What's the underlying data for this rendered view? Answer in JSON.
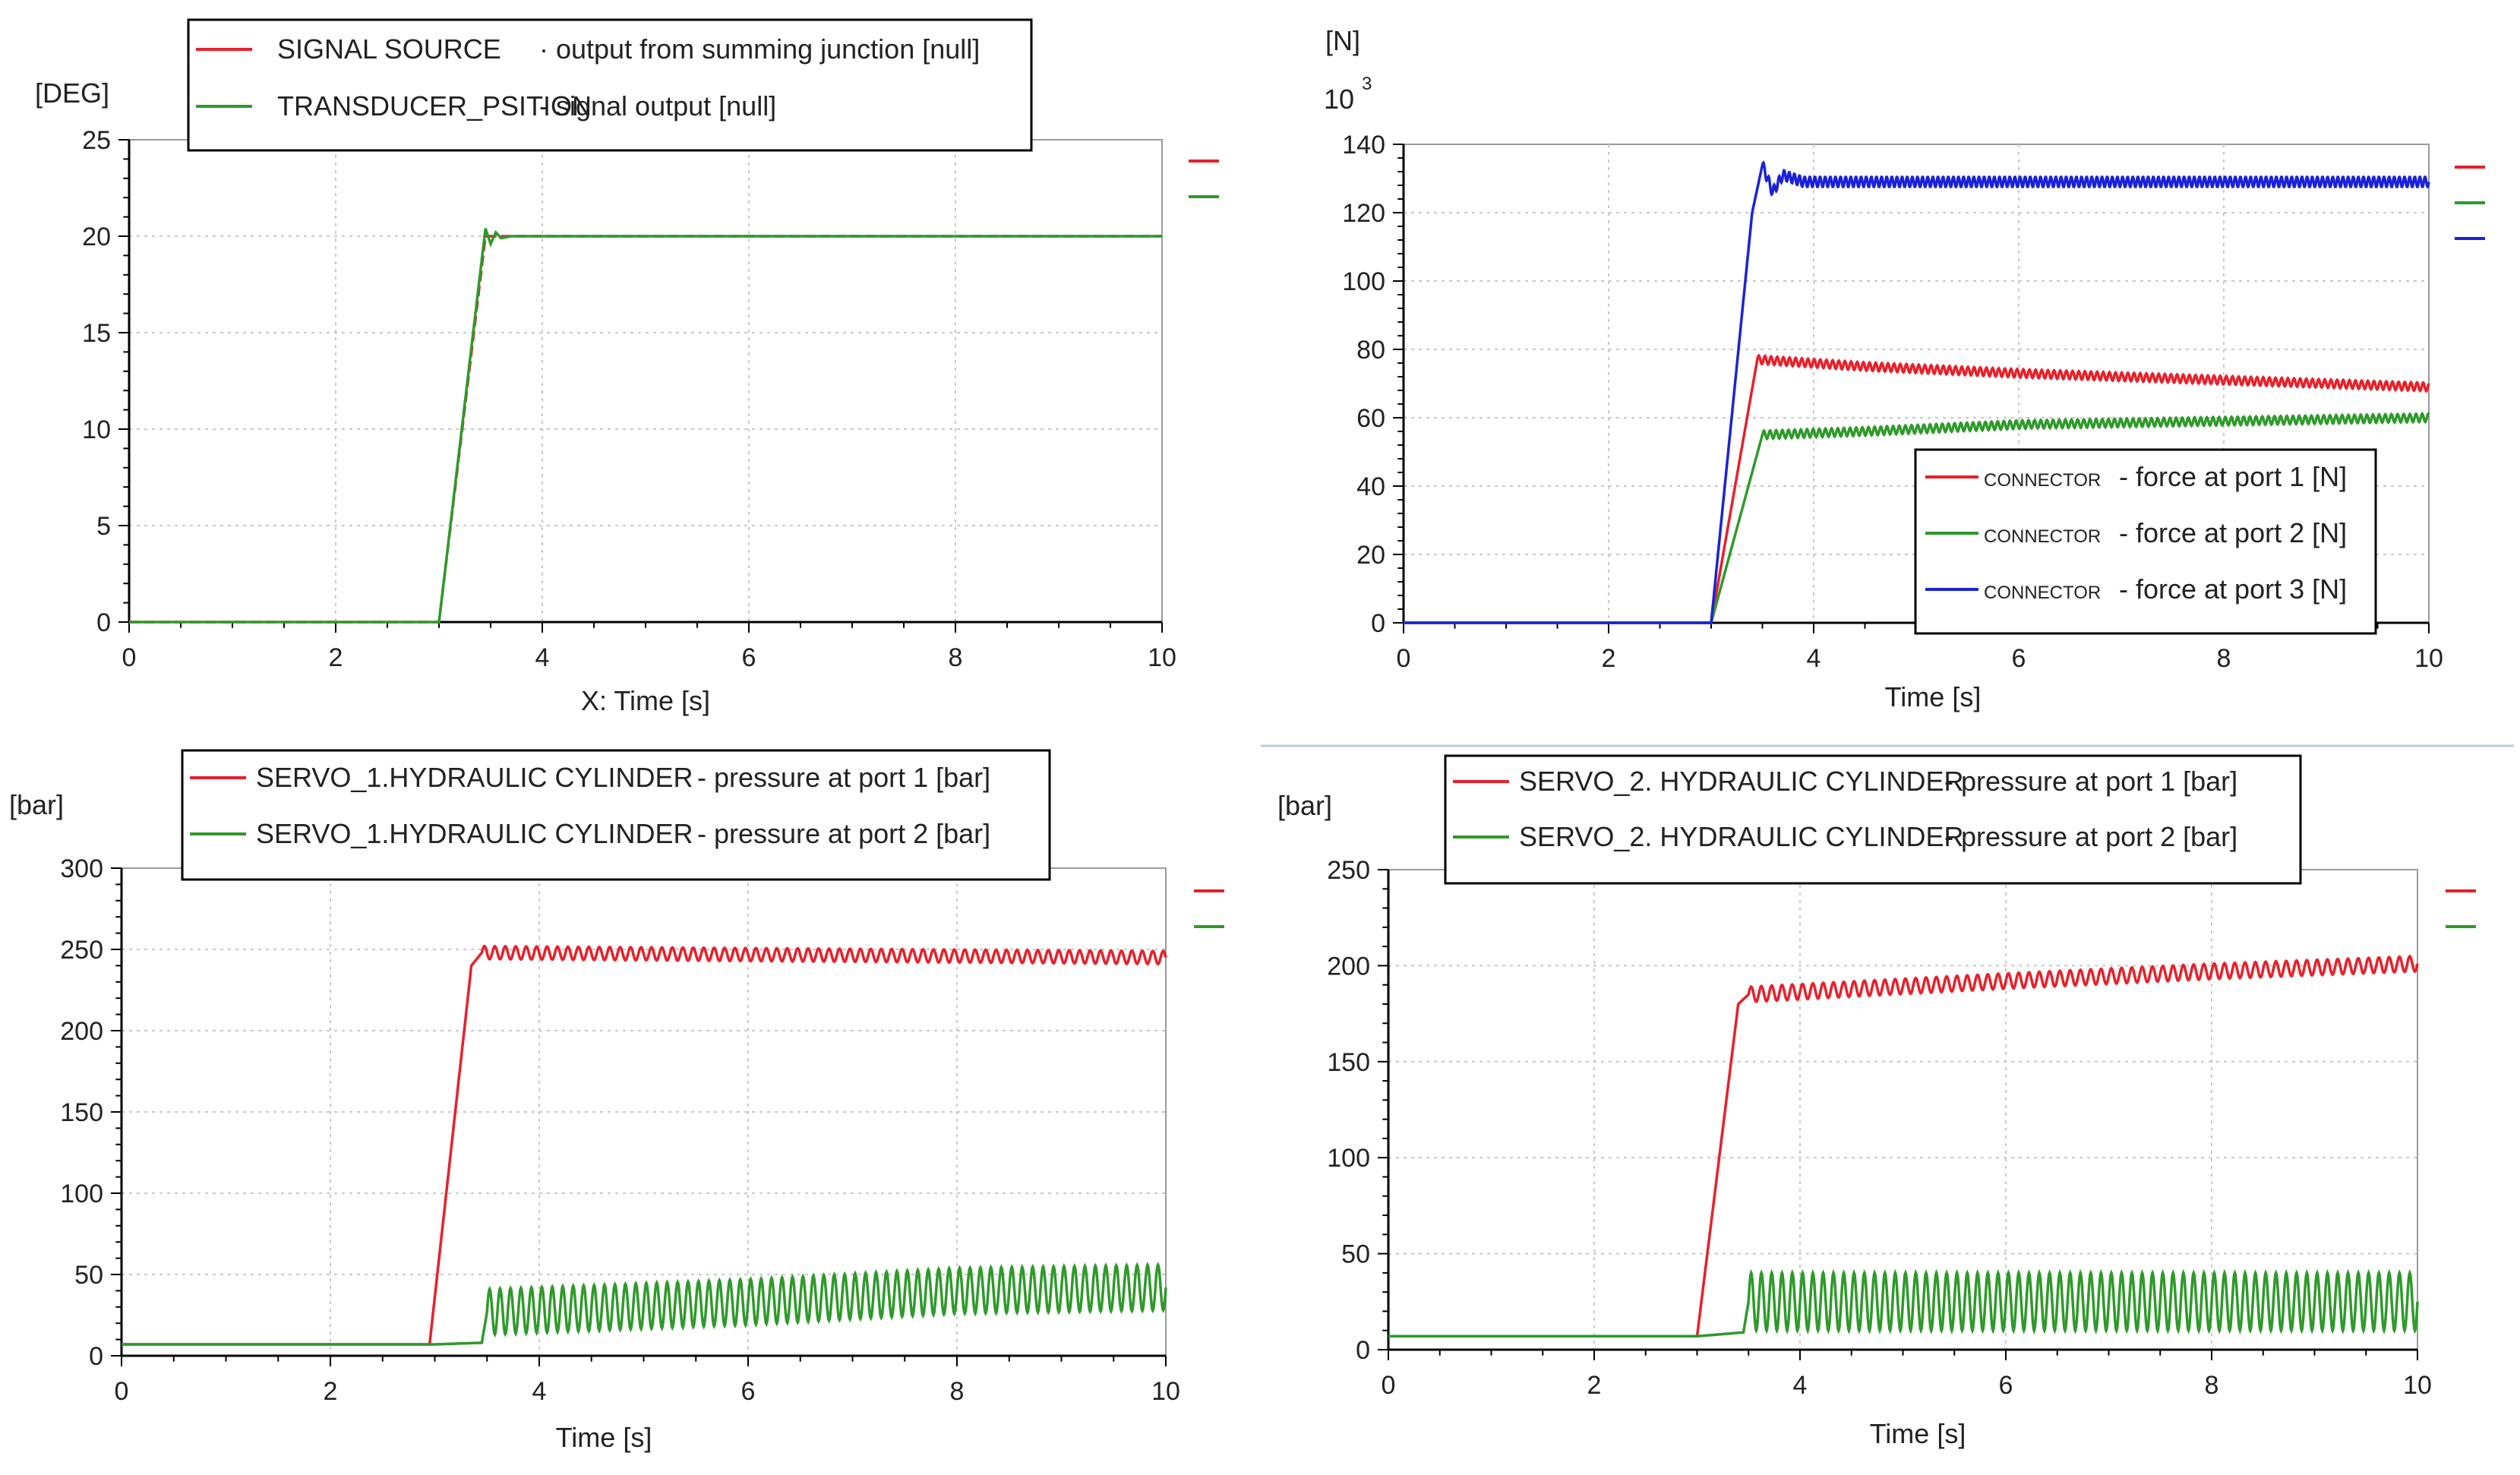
{
  "chart_data": [
    {
      "id": "c1",
      "type": "line",
      "unit": "[DEG]",
      "xlabel": "X: Time [s]",
      "ylabel": "",
      "xlim": [
        0,
        10
      ],
      "ylim": [
        0,
        25
      ],
      "xticks": [
        "0",
        "2",
        "4",
        "6",
        "8",
        "10"
      ],
      "yticks": [
        "0",
        "5",
        "10",
        "15",
        "20",
        "25"
      ],
      "legend_position": "top-left",
      "series": [
        {
          "name": "SIGNAL SOURCE",
          "desc": "· output from summing junction [null]",
          "color": "#e8202a",
          "dashed": true,
          "points": [
            [
              0,
              0
            ],
            [
              3.0,
              0
            ],
            [
              3.45,
              20
            ],
            [
              10,
              20
            ]
          ],
          "osc": null
        },
        {
          "name": "TRANSDUCER_PSITION",
          "desc": "- signal output [null]",
          "color": "#2e9a2a",
          "dashed": false,
          "points": [
            [
              0,
              0
            ],
            [
              3.0,
              0
            ],
            [
              3.45,
              20.4
            ],
            [
              3.5,
              19.6
            ],
            [
              3.55,
              20.2
            ],
            [
              3.6,
              19.9
            ],
            [
              3.7,
              20
            ],
            [
              10,
              20
            ]
          ],
          "osc": null
        }
      ]
    },
    {
      "id": "c2",
      "type": "line",
      "unit": "[N]",
      "multiplier": "10",
      "exponent": "3",
      "xlabel": "Time [s]",
      "ylabel": "",
      "xlim": [
        0,
        10
      ],
      "ylim": [
        0,
        140
      ],
      "xticks": [
        "0",
        "2",
        "4",
        "6",
        "8",
        "10"
      ],
      "yticks": [
        "0",
        "20",
        "40",
        "60",
        "80",
        "100",
        "120",
        "140"
      ],
      "legend_position": "bottom-right",
      "series": [
        {
          "name": "CONNECTOR",
          "desc": "- force at port 1 [N]",
          "color": "#e8202a",
          "dashed": false,
          "points": [
            [
              0,
              0
            ],
            [
              3.0,
              0
            ],
            [
              3.45,
              77
            ],
            [
              4.5,
              75
            ],
            [
              6,
              73
            ],
            [
              8,
              71
            ],
            [
              10,
              69
            ]
          ],
          "osc": {
            "start": 3.45,
            "amp": 1.2,
            "period": 0.06
          }
        },
        {
          "name": "CONNECTOR",
          "desc": "- force at port 2 [N]",
          "color": "#2e9a2a",
          "dashed": false,
          "points": [
            [
              0,
              0
            ],
            [
              3.0,
              0
            ],
            [
              3.5,
              55
            ],
            [
              4.5,
              56
            ],
            [
              6,
              58
            ],
            [
              8,
              59
            ],
            [
              10,
              60
            ]
          ],
          "osc": {
            "start": 3.5,
            "amp": 1.2,
            "period": 0.06
          }
        },
        {
          "name": "CONNECTOR",
          "desc": "- force at port 3 [N]",
          "color": "#1a22d8",
          "dashed": false,
          "points": [
            [
              0,
              0
            ],
            [
              3.0,
              0
            ],
            [
              3.4,
              120
            ],
            [
              3.5,
              134
            ],
            [
              3.6,
              126
            ],
            [
              3.7,
              131
            ],
            [
              3.9,
              129
            ],
            [
              10,
              129
            ]
          ],
          "osc": {
            "start": 3.5,
            "amp": 1.5,
            "period": 0.05
          }
        }
      ]
    },
    {
      "id": "c3",
      "type": "line",
      "unit": "[bar]",
      "xlabel": "Time [s]",
      "ylabel": "",
      "xlim": [
        0,
        10
      ],
      "ylim": [
        0,
        300
      ],
      "xticks": [
        "0",
        "2",
        "4",
        "6",
        "8",
        "10"
      ],
      "yticks": [
        "0",
        "50",
        "100",
        "150",
        "200",
        "250",
        "300"
      ],
      "legend_position": "top",
      "series": [
        {
          "name": "SERVO_1.HYDRAULIC CYLINDER",
          "desc": "- pressure at port 1 [bar]",
          "color": "#e8202a",
          "dashed": false,
          "points": [
            [
              0,
              7
            ],
            [
              2.95,
              7
            ],
            [
              3.35,
              240
            ],
            [
              3.45,
              248
            ],
            [
              10,
              245
            ]
          ],
          "osc": {
            "start": 3.45,
            "amp": 4,
            "period": 0.1
          }
        },
        {
          "name": "SERVO_1.HYDRAULIC CYLINDER",
          "desc": "- pressure at port 2 [bar]",
          "color": "#2e9a2a",
          "dashed": false,
          "points": [
            [
              0,
              7
            ],
            [
              3.0,
              7
            ],
            [
              3.45,
              8
            ],
            [
              3.5,
              27
            ],
            [
              6,
              33
            ],
            [
              8,
              40
            ],
            [
              10,
              42
            ]
          ],
          "osc": {
            "start": 3.5,
            "amp": 14,
            "period": 0.1
          }
        }
      ]
    },
    {
      "id": "c4",
      "type": "line",
      "unit": "[bar]",
      "xlabel": "Time [s]",
      "ylabel": "",
      "xlim": [
        0,
        10
      ],
      "ylim": [
        0,
        250
      ],
      "xticks": [
        "0",
        "2",
        "4",
        "6",
        "8",
        "10"
      ],
      "yticks": [
        "0",
        "50",
        "100",
        "150",
        "200",
        "250"
      ],
      "legend_position": "top",
      "series": [
        {
          "name": "SERVO_2. HYDRAULIC CYLINDER",
          "desc": "- pressure at port 1 [bar]",
          "color": "#e8202a",
          "dashed": false,
          "points": [
            [
              0,
              7
            ],
            [
              3.0,
              7
            ],
            [
              3.4,
              180
            ],
            [
              3.5,
              185
            ],
            [
              6,
              192
            ],
            [
              8,
              197
            ],
            [
              10,
              201
            ]
          ],
          "osc": {
            "start": 3.5,
            "amp": 4,
            "period": 0.1
          }
        },
        {
          "name": "SERVO_2. HYDRAULIC CYLINDER",
          "desc": "- pressure at port 2 [bar]",
          "color": "#2e9a2a",
          "dashed": false,
          "points": [
            [
              0,
              7
            ],
            [
              3.0,
              7
            ],
            [
              3.45,
              9
            ],
            [
              3.5,
              25
            ],
            [
              10,
              25
            ]
          ],
          "osc": {
            "start": 3.5,
            "amp": 15,
            "period": 0.1
          }
        }
      ]
    }
  ]
}
